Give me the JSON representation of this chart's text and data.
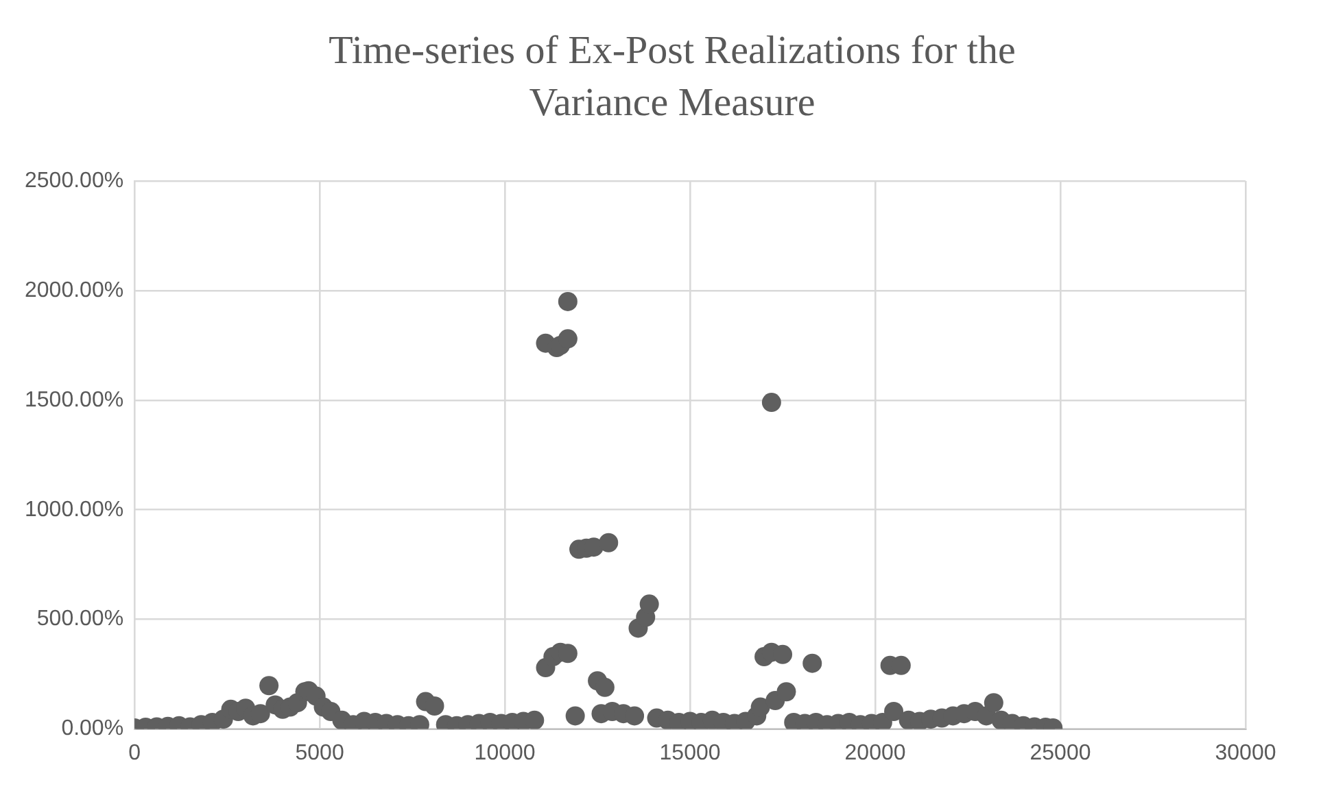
{
  "chart_data": {
    "type": "scatter",
    "title": "Time-series of Ex-Post Realizations for the Variance Measure",
    "x": [
      0,
      300,
      600,
      900,
      1200,
      1500,
      1800,
      2100,
      2400,
      2600,
      2800,
      3000,
      3200,
      3400,
      3630,
      3800,
      4000,
      4200,
      4400,
      4600,
      4700,
      4900,
      5100,
      5300,
      5600,
      5900,
      6200,
      6500,
      6800,
      7100,
      7400,
      7700,
      7860,
      8100,
      8400,
      8700,
      9000,
      9300,
      9600,
      9900,
      10200,
      10500,
      10800,
      11100,
      11100,
      11300,
      11400,
      11500,
      11500,
      11700,
      11700,
      11700,
      11900,
      12000,
      12200,
      12400,
      12500,
      12600,
      12700,
      12800,
      12900,
      13200,
      13500,
      13600,
      13800,
      13900,
      14100,
      14400,
      14700,
      15000,
      15300,
      15600,
      15900,
      16200,
      16500,
      16800,
      16900,
      17000,
      17200,
      17200,
      17300,
      17500,
      17600,
      17800,
      18100,
      18300,
      18400,
      18700,
      19000,
      19300,
      19600,
      19900,
      20200,
      20400,
      20500,
      20700,
      20900,
      21200,
      21500,
      21800,
      22100,
      22400,
      22700,
      23000,
      23200,
      23400,
      23700,
      24000,
      24300,
      24600,
      24800
    ],
    "values": [
      5,
      8,
      10,
      12,
      15,
      10,
      20,
      30,
      45,
      90,
      80,
      95,
      60,
      70,
      198,
      110,
      90,
      100,
      120,
      170,
      175,
      150,
      100,
      80,
      40,
      20,
      35,
      30,
      25,
      20,
      15,
      20,
      125,
      105,
      20,
      15,
      20,
      25,
      30,
      25,
      30,
      35,
      40,
      1760,
      280,
      330,
      1740,
      1750,
      350,
      1780,
      1950,
      345,
      60,
      820,
      825,
      830,
      220,
      70,
      190,
      850,
      80,
      70,
      60,
      460,
      510,
      570,
      50,
      40,
      30,
      35,
      30,
      40,
      30,
      25,
      35,
      60,
      100,
      330,
      1490,
      350,
      130,
      340,
      170,
      30,
      25,
      300,
      30,
      20,
      25,
      30,
      20,
      25,
      30,
      290,
      80,
      290,
      40,
      35,
      45,
      50,
      60,
      70,
      80,
      60,
      120,
      40,
      25,
      15,
      10,
      8,
      5
    ],
    "color": "#5f5f5f",
    "marker": "circle",
    "grid": true,
    "xlim": [
      0,
      30000
    ],
    "xticks": [
      0,
      5000,
      10000,
      15000,
      20000,
      25000,
      30000
    ],
    "ylim": [
      0,
      2500
    ],
    "yticks": [
      {
        "value": 0,
        "label": "0.00%"
      },
      {
        "value": 500,
        "label": "500.00%"
      },
      {
        "value": 1000,
        "label": "1000.00%"
      },
      {
        "value": 1500,
        "label": "1500.00%"
      },
      {
        "value": 2000,
        "label": "2000.00%"
      },
      {
        "value": 2500,
        "label": "2500.00%"
      }
    ]
  }
}
